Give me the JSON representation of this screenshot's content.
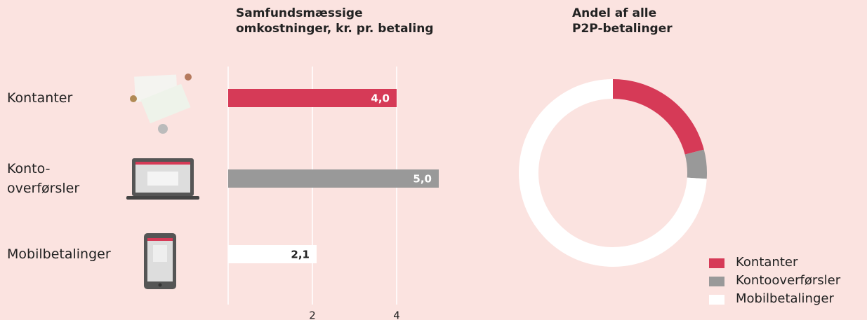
{
  "chart_data": [
    {
      "type": "bar",
      "orientation": "horizontal",
      "title": "Samfundsmæssige\nomkostninger, kr. pr. betaling",
      "categories": [
        "Kontanter",
        "Konto-\noverførsler",
        "Mobilbetalinger"
      ],
      "values": [
        4.0,
        5.0,
        2.1
      ],
      "value_labels": [
        "4,0",
        "5,0",
        "2,1"
      ],
      "colors": [
        "#d63a57",
        "#999999",
        "#ffffff"
      ],
      "xlim": [
        0,
        5
      ],
      "xticks": [
        2,
        4
      ],
      "grid": true
    },
    {
      "type": "pie",
      "donut": true,
      "title": "Andel af alle\nP2P-betalinger",
      "categories": [
        "Kontanter",
        "Kontooverførsler",
        "Mobilbetalinger"
      ],
      "values": [
        21,
        5,
        74
      ],
      "colors": [
        "#d63a57",
        "#999999",
        "#ffffff"
      ],
      "legend": "lower right"
    }
  ]
}
